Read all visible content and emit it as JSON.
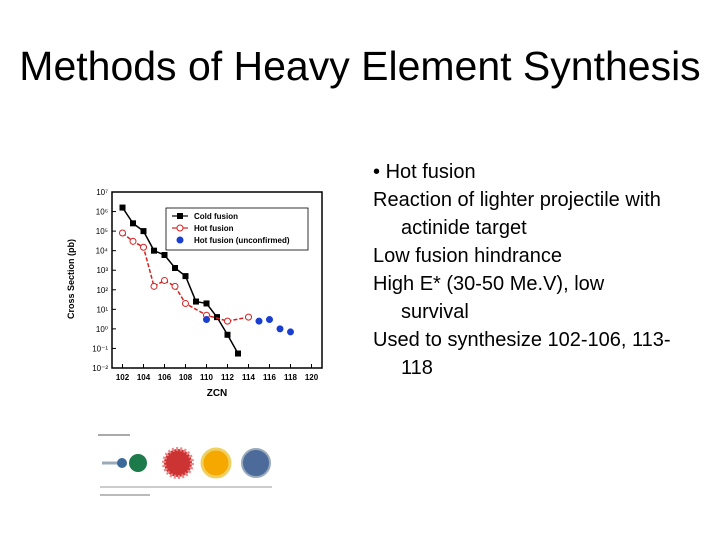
{
  "title": "Methods of Heavy Element Synthesis",
  "bullet": "Hot fusion",
  "lines": [
    "Reaction of lighter projectile with actinide target",
    "Low fusion hindrance",
    "High E* (30-50 Me.V), low survival",
    "Used to synthesize 102-106, 113-118"
  ],
  "chart_data": {
    "type": "scatter",
    "log_y": true,
    "xlabel": "ZCN",
    "ylabel": "Cross Section (pb)",
    "xlim": [
      101,
      121
    ],
    "xticks": [
      102,
      104,
      106,
      108,
      110,
      112,
      114,
      116,
      118,
      120
    ],
    "ylim": [
      0.01,
      10000000
    ],
    "yticks": [
      {
        "value": 0.01,
        "label": "10⁻²"
      },
      {
        "value": 0.1,
        "label": "10⁻¹"
      },
      {
        "value": 1,
        "label": "10⁰"
      },
      {
        "value": 10,
        "label": "10¹"
      },
      {
        "value": 100,
        "label": "10²"
      },
      {
        "value": 1000,
        "label": "10³"
      },
      {
        "value": 10000,
        "label": "10⁴"
      },
      {
        "value": 100000,
        "label": "10⁵"
      },
      {
        "value": 1000000,
        "label": "10⁶"
      },
      {
        "value": 10000000,
        "label": "10⁷"
      }
    ],
    "series": [
      {
        "name": "Cold fusion",
        "color": "#000000",
        "marker": "square",
        "line": true,
        "x": [
          102,
          103,
          104,
          105,
          106,
          107,
          108,
          109,
          110,
          111,
          112,
          113
        ],
        "values": [
          1600000,
          250000,
          100000,
          10000,
          6000,
          1300,
          500,
          25,
          20,
          4,
          0.5,
          0.055
        ]
      },
      {
        "name": "Hot fusion",
        "color": "#d62020",
        "marker": "circle-open",
        "line": true,
        "x": [
          102,
          103,
          104,
          105,
          106,
          107,
          108,
          110,
          112,
          114
        ],
        "values": [
          80000,
          30000,
          15000,
          150,
          300,
          150,
          20,
          5,
          2.5,
          4
        ]
      },
      {
        "name": "Hot fusion (unconfirmed)",
        "color": "#1a3fd0",
        "marker": "circle",
        "line": false,
        "x": [
          110,
          115,
          116,
          117,
          118
        ],
        "values": [
          3,
          2.5,
          3,
          1,
          0.7
        ]
      }
    ]
  }
}
